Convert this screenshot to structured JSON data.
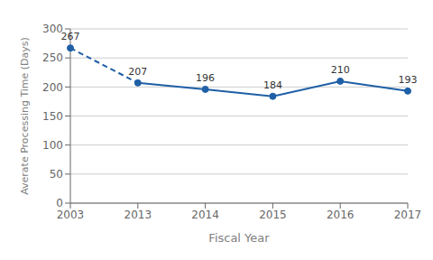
{
  "chart_data": {
    "type": "line",
    "xlabel": "Fiscal Year",
    "ylabel": "Averate Processing Time (Days)",
    "categories": [
      "2003",
      "2013",
      "2014",
      "2015",
      "2016",
      "2017"
    ],
    "series": [
      {
        "values": [
          267,
          207,
          null,
          null,
          null,
          null
        ],
        "line_style": "dashed"
      },
      {
        "values": [
          null,
          207,
          196,
          184,
          210,
          193
        ],
        "line_style": "solid"
      }
    ],
    "color": "#1f5fa6",
    "marker": "circle",
    "data_labels": true,
    "ylim": [
      0,
      300
    ],
    "yticks": [
      0,
      50,
      100,
      150,
      200,
      250,
      300
    ],
    "grid": true
  }
}
